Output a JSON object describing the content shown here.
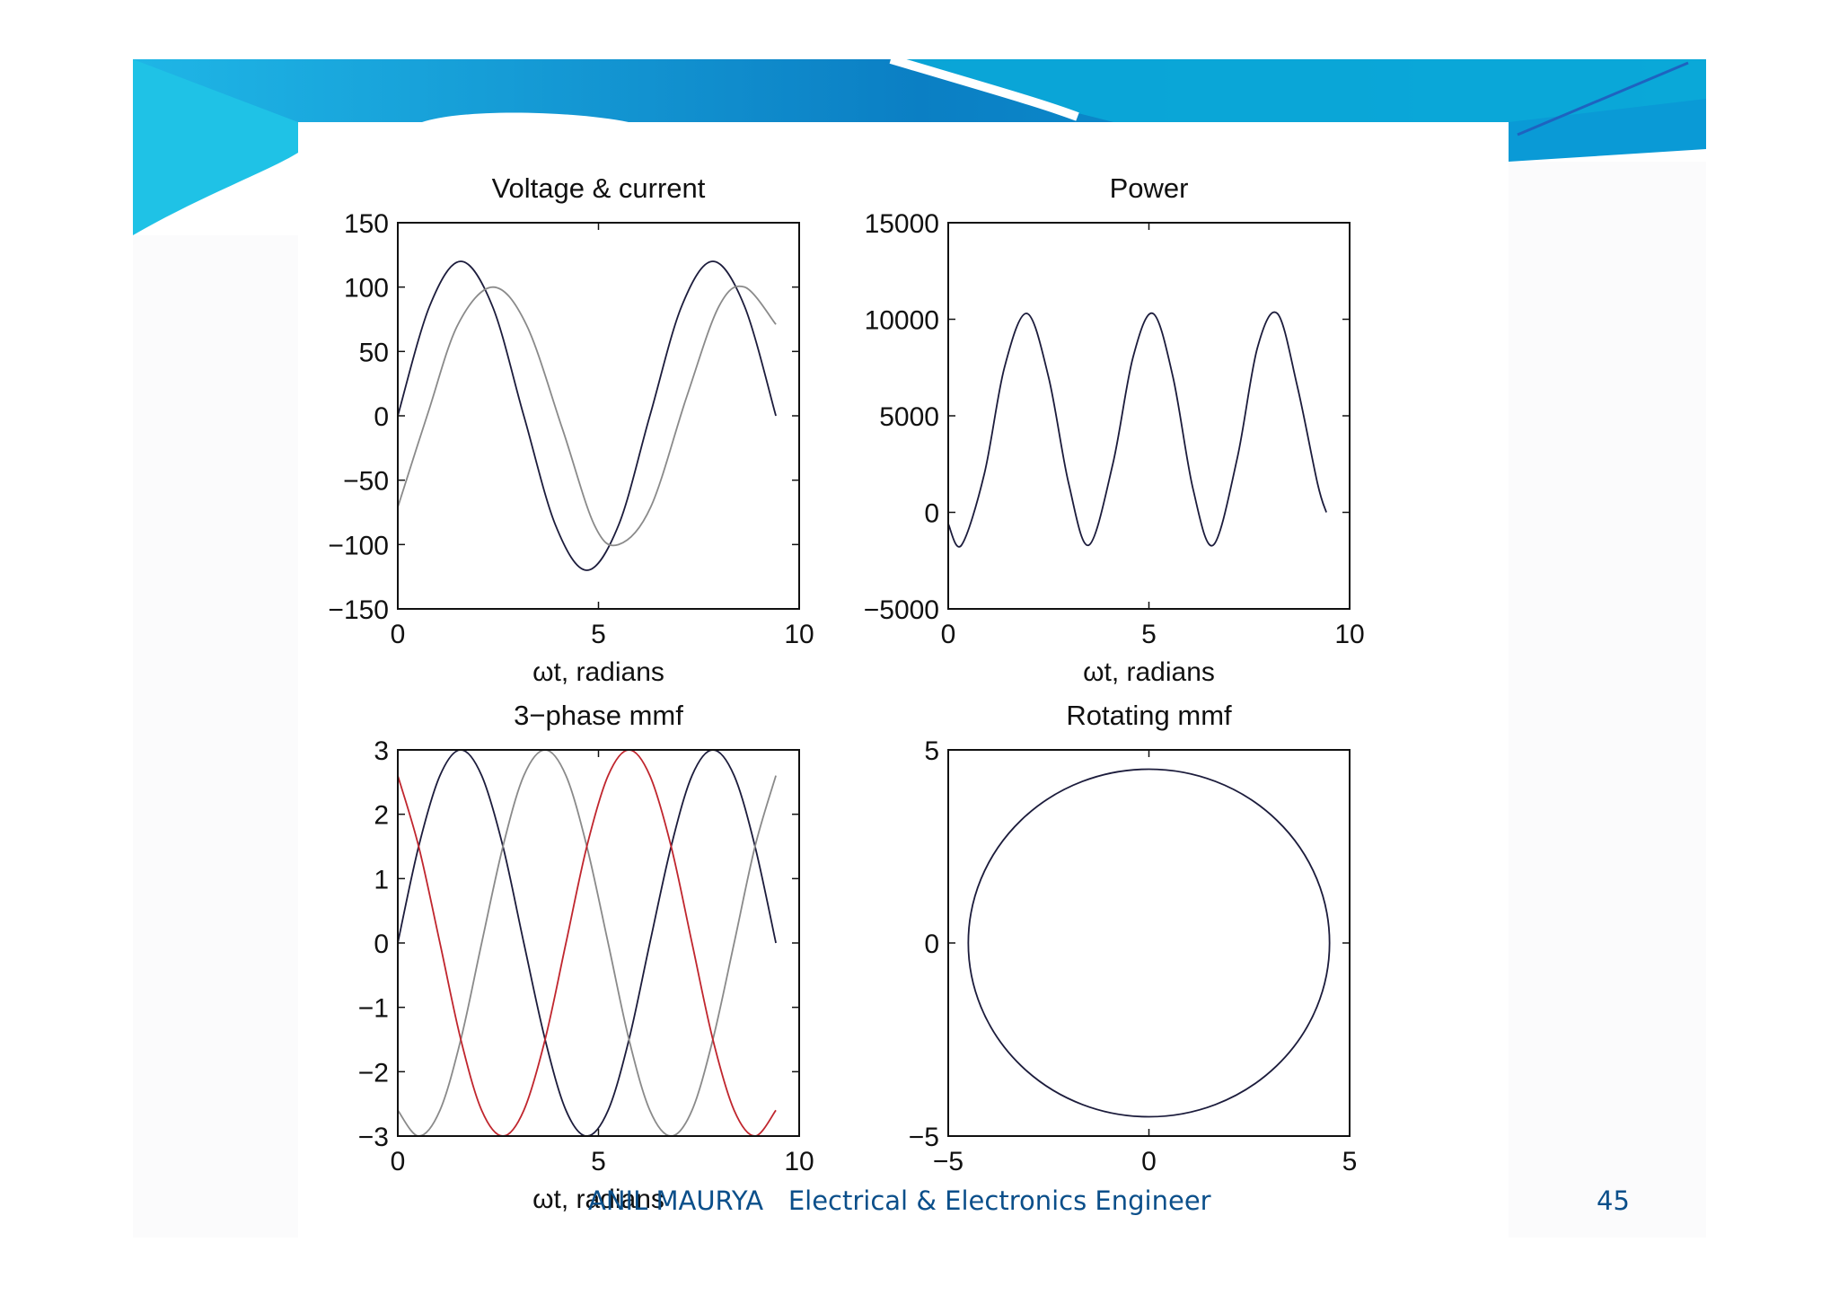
{
  "footer": {
    "author": "ANIL MAURYA",
    "role": "Electrical & Electronics Engineer",
    "page": "45"
  },
  "colors": {
    "series_dark": "#1c1c3c",
    "series_gray": "#8a8a8a",
    "series_red": "#c0262e"
  },
  "chart_data": [
    {
      "type": "line",
      "title": "Voltage & current",
      "xlabel": "ωt,  radians",
      "ylabel": "",
      "xlim": [
        0,
        10
      ],
      "ylim": [
        -150,
        150
      ],
      "xticks": [
        0,
        5,
        10
      ],
      "yticks": [
        150,
        100,
        50,
        0,
        -50,
        -100,
        -150
      ],
      "xtick_labels": [
        "0",
        "5",
        "10"
      ],
      "ytick_labels": [
        "150",
        "100",
        "50",
        "0",
        "−50",
        "−100",
        "−150"
      ],
      "series": [
        {
          "color": "dark",
          "x": [
            0,
            0.79,
            1.57,
            2.36,
            3.14,
            3.93,
            4.71,
            5.5,
            6.28,
            7.07,
            7.85,
            8.64,
            9.42
          ],
          "y": [
            0,
            85,
            120,
            85,
            0,
            -85,
            -120,
            -85,
            0,
            85,
            120,
            85,
            0
          ]
        },
        {
          "color": "gray",
          "x": [
            0,
            0.75,
            1.5,
            2.37,
            3.2,
            4.1,
            4.9,
            5.5,
            6.3,
            7.2,
            8.0,
            8.64,
            9.42
          ],
          "y": [
            -71,
            2,
            71,
            100,
            71,
            -10,
            -85,
            -100,
            -71,
            15,
            85,
            100,
            71
          ]
        }
      ]
    },
    {
      "type": "line",
      "title": "Power",
      "xlabel": "ωt,  radians",
      "ylabel": "",
      "xlim": [
        0,
        10
      ],
      "ylim": [
        -5000,
        15000
      ],
      "xticks": [
        0,
        5,
        10
      ],
      "yticks": [
        15000,
        10000,
        5000,
        0,
        -5000
      ],
      "xtick_labels": [
        "0",
        "5",
        "10"
      ],
      "ytick_labels": [
        "15000",
        "10000",
        "5000",
        "0",
        "−5000"
      ],
      "series": [
        {
          "color": "dark",
          "x": [
            0,
            0.33,
            0.9,
            1.4,
            1.96,
            2.5,
            3.0,
            3.5,
            4.1,
            4.6,
            5.1,
            5.6,
            6.1,
            6.6,
            7.2,
            7.7,
            8.2,
            8.7,
            9.2,
            9.42
          ],
          "y": [
            -600,
            -1700,
            2000,
            7500,
            10300,
            7000,
            1500,
            -1700,
            2500,
            8000,
            10300,
            7000,
            1200,
            -1700,
            2800,
            8500,
            10300,
            6500,
            1500,
            0
          ]
        }
      ]
    },
    {
      "type": "line",
      "title": "3−phase mmf",
      "xlabel": "ωt,  radians",
      "ylabel": "",
      "xlim": [
        0,
        10
      ],
      "ylim": [
        -3,
        3
      ],
      "xticks": [
        0,
        5,
        10
      ],
      "yticks": [
        3,
        2,
        1,
        0,
        -1,
        -2,
        -3
      ],
      "xtick_labels": [
        "0",
        "5",
        "10"
      ],
      "ytick_labels": [
        "3",
        "2",
        "1",
        "0",
        "−1",
        "−2",
        "−3"
      ],
      "series": [
        {
          "color": "dark",
          "x": [
            0,
            0.52,
            1.05,
            1.57,
            2.09,
            2.62,
            3.14,
            3.67,
            4.19,
            4.71,
            5.24,
            5.76,
            6.28,
            6.81,
            7.33,
            7.85,
            8.38,
            8.9,
            9.42
          ],
          "y": [
            0,
            1.5,
            2.6,
            3,
            2.6,
            1.5,
            0,
            -1.5,
            -2.6,
            -3,
            -2.6,
            -1.5,
            0,
            1.5,
            2.6,
            3,
            2.6,
            1.5,
            0
          ]
        },
        {
          "color": "gray",
          "x": [
            0,
            0.52,
            1.05,
            1.57,
            2.09,
            2.62,
            3.14,
            3.67,
            4.19,
            4.71,
            5.24,
            5.76,
            6.28,
            6.81,
            7.33,
            7.85,
            8.38,
            8.9,
            9.42
          ],
          "y": [
            -2.6,
            -3,
            -2.6,
            -1.5,
            0,
            1.5,
            2.6,
            3,
            2.6,
            1.5,
            0,
            -1.5,
            -2.6,
            -3,
            -2.6,
            -1.5,
            0,
            1.5,
            2.6
          ]
        },
        {
          "color": "red",
          "x": [
            0,
            0.52,
            1.05,
            1.57,
            2.09,
            2.62,
            3.14,
            3.67,
            4.19,
            4.71,
            5.24,
            5.76,
            6.28,
            6.81,
            7.33,
            7.85,
            8.38,
            8.9,
            9.42
          ],
          "y": [
            2.6,
            1.5,
            0,
            -1.5,
            -2.6,
            -3,
            -2.6,
            -1.5,
            0,
            1.5,
            2.6,
            3,
            2.6,
            1.5,
            0,
            -1.5,
            -2.6,
            -3,
            -2.6
          ]
        }
      ]
    },
    {
      "type": "line",
      "title": "Rotating mmf",
      "xlabel": "",
      "ylabel": "",
      "xlim": [
        -5,
        5
      ],
      "ylim": [
        -5,
        5
      ],
      "xticks": [
        -5,
        0,
        5
      ],
      "yticks": [
        5,
        0,
        -5
      ],
      "xtick_labels": [
        "−5",
        "0",
        "5"
      ],
      "ytick_labels": [
        "5",
        "0",
        "−5"
      ],
      "series": [
        {
          "color": "dark",
          "shape": "circle",
          "radius": 4.5,
          "center": [
            0,
            0
          ]
        }
      ]
    }
  ]
}
